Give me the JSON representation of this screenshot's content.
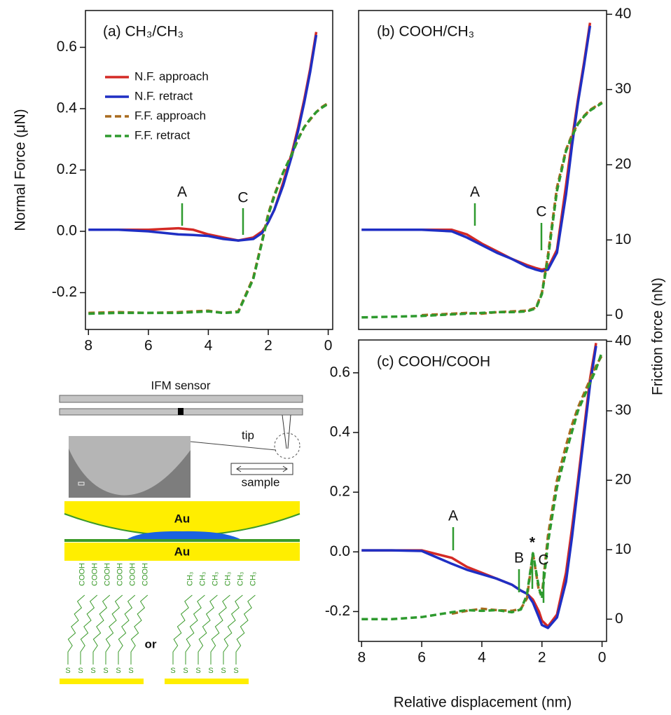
{
  "chart_data": [
    {
      "type": "line",
      "title": "(a) CH₃/CH₃",
      "ylabel": "Normal Force (μN)",
      "x": [
        8,
        7,
        6,
        5,
        4.5,
        4,
        3.5,
        3,
        2.5,
        2.2,
        2,
        1.8,
        1.5,
        1.2,
        1,
        0.8,
        0.6,
        0.4,
        0.2,
        0
      ],
      "xlim": [
        8.1,
        -0.15
      ],
      "xticks": [
        8,
        6,
        4,
        2,
        0
      ],
      "ylim": [
        -0.32,
        0.72
      ],
      "yticks": [
        -0.2,
        {
          "value": 0,
          "label": "0.0"
        },
        0.2,
        0.4,
        0.6
      ],
      "y2lim": [
        -1.9,
        40.5
      ],
      "legend": "upper left",
      "annotations": [
        "A",
        "C"
      ],
      "series": [
        {
          "name": "N.F. approach",
          "color": "#d42a25",
          "style": "solid",
          "values": [
            0.005,
            0.005,
            0.005,
            0.01,
            0.005,
            -0.01,
            -0.02,
            -0.03,
            -0.02,
            0.0,
            0.03,
            0.07,
            0.16,
            0.26,
            0.34,
            0.43,
            0.53,
            0.65,
            null,
            null
          ]
        },
        {
          "name": "N.F. retract",
          "color": "#1f2fc4",
          "style": "solid",
          "values": [
            0.005,
            0.005,
            0.0,
            -0.01,
            -0.012,
            -0.015,
            -0.025,
            -0.03,
            -0.025,
            -0.005,
            0.03,
            0.07,
            0.15,
            0.25,
            0.33,
            0.42,
            0.52,
            0.64,
            null,
            null
          ]
        },
        {
          "name": "F.F. approach",
          "color": "#a86a1e",
          "style": "dashed",
          "axis": "y2",
          "values": [
            0.3,
            0.4,
            0.3,
            0.4,
            0.5,
            0.6,
            0.3,
            0.5,
            5,
            10,
            13.5,
            16,
            19,
            21.5,
            23.5,
            25,
            26,
            27,
            27.7,
            28.2
          ]
        },
        {
          "name": "F.F. retract",
          "color": "#2e9a2e",
          "style": "dashed",
          "axis": "y2",
          "values": [
            0.2,
            0.3,
            0.3,
            0.3,
            0.4,
            0.5,
            0.3,
            0.4,
            4.8,
            9.8,
            13.3,
            15.8,
            19,
            21.5,
            23.4,
            25,
            26.1,
            27,
            27.6,
            28.1
          ]
        }
      ]
    },
    {
      "type": "line",
      "title": "(b) COOH/CH₃",
      "y2label": "Friction force (nN)",
      "x": [
        8,
        7,
        6,
        5,
        4.5,
        4,
        3.5,
        3,
        2.5,
        2.2,
        2,
        1.8,
        1.5,
        1.2,
        1,
        0.8,
        0.6,
        0.4,
        0.2,
        0
      ],
      "xlim": [
        8.1,
        -0.15
      ],
      "ylim": [
        -0.32,
        0.72
      ],
      "y2lim": [
        -1.9,
        40.5
      ],
      "y2ticks": [
        0,
        10,
        20,
        30,
        40
      ],
      "annotations": [
        "A",
        "C"
      ],
      "series": [
        {
          "color": "#d42a25",
          "style": "solid",
          "values": [
            0.005,
            0.005,
            0.005,
            0.005,
            -0.01,
            -0.04,
            -0.065,
            -0.09,
            -0.11,
            -0.12,
            -0.125,
            -0.12,
            -0.06,
            0.15,
            0.3,
            0.43,
            0.55,
            0.68,
            null,
            null
          ]
        },
        {
          "color": "#1f2fc4",
          "style": "solid",
          "values": [
            0.005,
            0.005,
            0.005,
            0.0,
            -0.02,
            -0.045,
            -0.07,
            -0.09,
            -0.115,
            -0.125,
            -0.13,
            -0.125,
            -0.07,
            0.12,
            0.28,
            0.42,
            0.54,
            0.67,
            null,
            null
          ]
        },
        {
          "color": "#a86a1e",
          "style": "dashed",
          "axis": "y2",
          "values": [
            null,
            null,
            0.0,
            0.2,
            0.3,
            0.2,
            0.4,
            0.5,
            0.6,
            1,
            3,
            8,
            17,
            22,
            24,
            25.5,
            26.5,
            27.3,
            27.8,
            28.3
          ]
        },
        {
          "color": "#2e9a2e",
          "style": "dashed",
          "axis": "y2",
          "values": [
            -0.3,
            -0.2,
            -0.1,
            0.1,
            0.2,
            0.3,
            0.4,
            0.4,
            0.5,
            0.9,
            2.8,
            7.5,
            16.5,
            21.8,
            23.8,
            25.4,
            26.4,
            27.2,
            27.7,
            28.2
          ]
        }
      ]
    },
    {
      "type": "line",
      "title": "(c) COOH/COOH",
      "xlabel": "Relative displacement (nm)",
      "x": [
        8,
        7,
        6,
        5,
        4.5,
        4,
        3.5,
        3,
        2.7,
        2.5,
        2.3,
        2.1,
        2,
        1.8,
        1.5,
        1.2,
        1,
        0.8,
        0.6,
        0.4,
        0.2,
        0
      ],
      "xlim": [
        8.1,
        -0.15
      ],
      "xticks": [
        8,
        6,
        4,
        2,
        0
      ],
      "ylim": [
        -0.3,
        0.71
      ],
      "yticks": [
        -0.2,
        {
          "value": 0,
          "label": "0.0"
        },
        0.2,
        0.4,
        0.6
      ],
      "y2lim": [
        -3.2,
        40.2
      ],
      "y2ticks": [
        0,
        10,
        20,
        30,
        40
      ],
      "annotations": [
        "A",
        "B",
        "*",
        "C"
      ],
      "series": [
        {
          "color": "#d42a25",
          "style": "solid",
          "values": [
            0.005,
            0.005,
            0.005,
            -0.02,
            -0.05,
            -0.07,
            -0.09,
            -0.11,
            -0.13,
            -0.14,
            -0.16,
            -0.2,
            -0.23,
            -0.25,
            -0.21,
            -0.07,
            0.08,
            0.24,
            0.41,
            0.58,
            0.7,
            null
          ]
        },
        {
          "color": "#1f2fc4",
          "style": "solid",
          "values": [
            0.005,
            0.005,
            0.003,
            -0.04,
            -0.06,
            -0.075,
            -0.09,
            -0.11,
            -0.13,
            -0.14,
            -0.17,
            -0.22,
            -0.245,
            -0.255,
            -0.22,
            -0.1,
            0.05,
            0.22,
            0.39,
            0.56,
            0.69,
            null
          ]
        },
        {
          "color": "#a86a1e",
          "style": "dashed",
          "axis": "y2",
          "values": [
            null,
            null,
            null,
            0.8,
            1.2,
            1.5,
            1.3,
            1.2,
            1.5,
            3,
            9.5,
            4,
            3.5,
            12,
            20,
            25,
            28,
            30.5,
            32.5,
            34.5,
            36.5,
            38
          ]
        },
        {
          "color": "#2e9a2e",
          "style": "dashed",
          "axis": "y2",
          "values": [
            0,
            0,
            0.3,
            1,
            1.3,
            1.2,
            1.3,
            1.0,
            1.4,
            3.5,
            9.5,
            4.5,
            3,
            11,
            19,
            24,
            27,
            30,
            32,
            34,
            36,
            38.5
          ]
        }
      ]
    }
  ],
  "diagram": {
    "sensor_label": "IFM sensor",
    "tip_label": "tip",
    "sample_label": "sample",
    "top_layer": "Au",
    "bottom_layer": "Au",
    "connector": "or",
    "head_group_left": "COOH",
    "head_group_right": "CH₃",
    "anchor": "S"
  }
}
